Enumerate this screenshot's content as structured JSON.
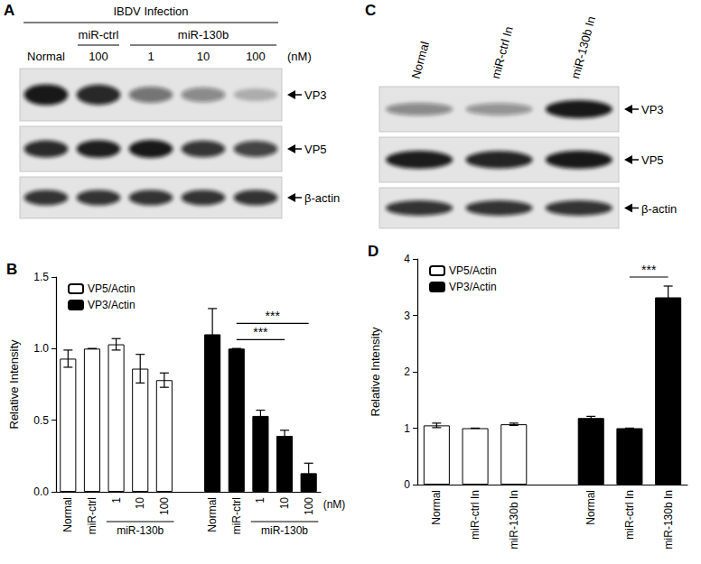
{
  "blot_A": {
    "panel": "A",
    "header": "IBDV Infection",
    "chart": "B",
    "lanes": [
      {
        "label": "Normal"
      },
      {
        "label": "100",
        "group": "miR-ctrl"
      },
      {
        "label": "1",
        "group": "miR-130b"
      },
      {
        "label": "10",
        "group": "miR-130b"
      },
      {
        "label": "100",
        "group": "miR-130b"
      }
    ],
    "unit": "(nM)",
    "rows": [
      {
        "label": "VP3",
        "series": "VP3/Actin"
      },
      {
        "label": "VP5",
        "series": "VP5/Actin"
      },
      {
        "label": "β-actin"
      }
    ]
  },
  "blot_C": {
    "panel": "C",
    "chart": "D",
    "lanes": [
      {
        "label": "Normal"
      },
      {
        "label": "miR-ctrl In"
      },
      {
        "label": "miR-130b In"
      }
    ],
    "rows": [
      {
        "label": "VP3",
        "series": "VP3/Actin"
      },
      {
        "label": "VP5",
        "series": "VP5/Actin"
      },
      {
        "label": "β-actin"
      }
    ]
  },
  "chart_data": [
    {
      "type": "bar",
      "title": "B",
      "y_label": "Relative Intensity",
      "categories": [
        "Normal",
        "miR-ctrl",
        "1",
        "10",
        "100",
        null,
        "Normal",
        "miR-ctrl",
        "1",
        "10",
        "100"
      ],
      "series": [
        {
          "name": "VP5/Actin",
          "color": "#ffffff",
          "values": [
            0.93,
            1.0,
            1.03,
            0.86,
            0.78,
            null,
            null,
            null,
            null,
            null,
            null
          ],
          "errors": [
            0.06,
            0,
            0.04,
            0.1,
            0.05,
            null,
            null,
            null,
            null,
            null,
            null
          ]
        },
        {
          "name": "VP3/Actin",
          "color": "#000000",
          "values": [
            null,
            null,
            null,
            null,
            null,
            null,
            1.1,
            1.0,
            0.53,
            0.39,
            0.13
          ],
          "errors": [
            null,
            null,
            null,
            null,
            null,
            null,
            0.18,
            0,
            0.04,
            0.04,
            0.07
          ]
        }
      ],
      "x_groups": [
        {
          "label": "miR-130b",
          "series": "VP5/Actin",
          "members": [
            "1",
            "10",
            "100"
          ]
        },
        {
          "label": "miR-130b",
          "series": "VP3/Actin",
          "members": [
            "1",
            "10",
            "100"
          ]
        }
      ],
      "x_unit": "(nM)",
      "annotations": [
        {
          "text": "***",
          "series": "VP3/Actin",
          "between": [
            "miR-ctrl",
            "10"
          ]
        },
        {
          "text": "***",
          "series": "VP3/Actin",
          "between": [
            "miR-ctrl",
            "100"
          ]
        }
      ],
      "ylim": [
        0,
        1.5
      ],
      "yticks": [
        {
          "value": 0,
          "label": "0.0"
        },
        {
          "value": 0.5,
          "label": "0.5"
        },
        {
          "value": 1,
          "label": "1.0"
        },
        {
          "value": 1.5,
          "label": "1.5"
        }
      ],
      "grid": false,
      "legend": "top-left"
    },
    {
      "type": "bar",
      "title": "D",
      "y_label": "Relative Intensity",
      "categories": [
        "Normal",
        "miR-ctrl In",
        "miR-130b In",
        null,
        "Normal",
        "miR-ctrl In",
        "miR-130b In"
      ],
      "series": [
        {
          "name": "VP5/Actin",
          "color": "#ffffff",
          "values": [
            1.05,
            1.0,
            1.07,
            null,
            null,
            null,
            null
          ],
          "errors": [
            0.04,
            0,
            0.02,
            null,
            null,
            null,
            null
          ]
        },
        {
          "name": "VP3/Actin",
          "color": "#000000",
          "values": [
            null,
            null,
            null,
            null,
            1.18,
            1.0,
            3.32
          ],
          "errors": [
            null,
            null,
            null,
            null,
            0.03,
            0,
            0.2
          ]
        }
      ],
      "annotations": [
        {
          "text": "***",
          "series": "VP3/Actin",
          "between": [
            "miR-ctrl In",
            "miR-130b In"
          ]
        }
      ],
      "ylim": [
        0,
        4
      ],
      "yticks": [
        0,
        1,
        2,
        3,
        4
      ],
      "grid": false,
      "legend": "top-left"
    }
  ]
}
